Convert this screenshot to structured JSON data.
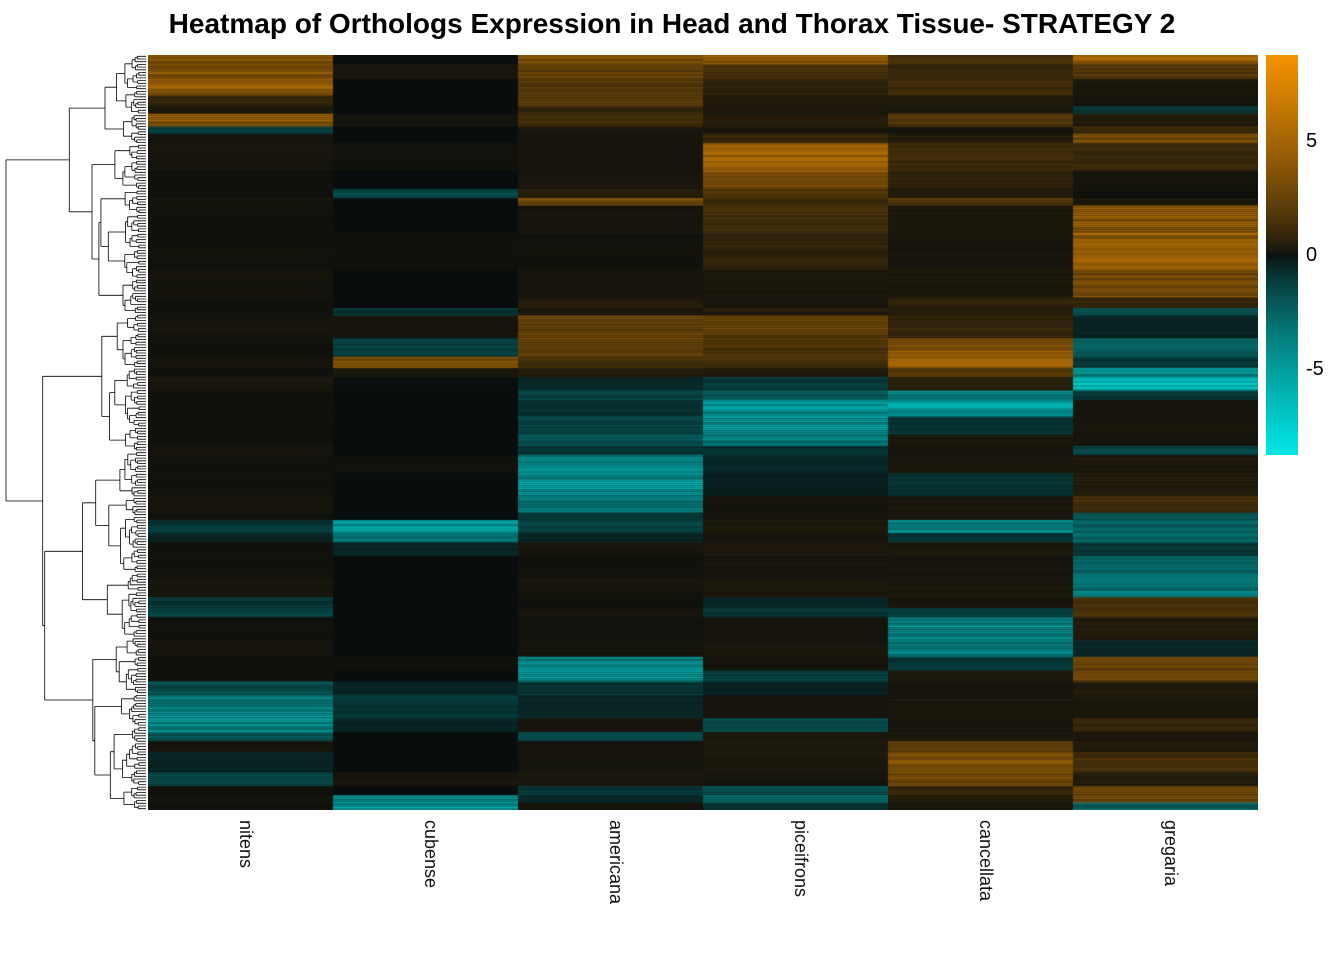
{
  "title": "Heatmap of Orthologs Expression in Head and Thorax Tissue- STRATEGY 2",
  "chart_data": {
    "type": "heatmap",
    "title": "Heatmap of Orthologs Expression in Head and Thorax Tissue- STRATEGY 2",
    "columns": [
      "nitens",
      "cubense",
      "americana",
      "piceifrons",
      "cancellata",
      "gregaria"
    ],
    "row_dendrogram": true,
    "colorbar": {
      "vmin": -8.8,
      "vmax": 8.8,
      "ticks": [
        {
          "value": 5,
          "label": "5"
        },
        {
          "value": 0,
          "label": "0"
        },
        {
          "value": -5,
          "label": "-5"
        }
      ],
      "color_negative": "#00e8e8",
      "color_zero": "#0a0e0e",
      "color_positive": "#f59300"
    },
    "bands": [
      {
        "h": 0.01,
        "v": [
          3.5,
          0,
          3,
          4,
          1.5,
          4.5
        ]
      },
      {
        "h": 0.016,
        "v": [
          4,
          0.3,
          2.5,
          1.5,
          1,
          2
        ]
      },
      {
        "h": 0.018,
        "v": [
          4.5,
          0,
          2,
          0.8,
          1.2,
          0.3
        ]
      },
      {
        "h": 0.012,
        "v": [
          1,
          0,
          2.5,
          0.5,
          0.5,
          0.2
        ]
      },
      {
        "h": 0.008,
        "v": [
          0.3,
          0,
          1,
          0.3,
          0.3,
          -1
        ]
      },
      {
        "h": 0.014,
        "v": [
          4,
          0.2,
          1.5,
          0.5,
          2,
          0.5
        ]
      },
      {
        "h": 0.008,
        "v": [
          -1.5,
          0,
          0.3,
          0.3,
          0.2,
          1.5
        ]
      },
      {
        "h": 0.01,
        "v": [
          0.2,
          0,
          0.2,
          1,
          0.5,
          3
        ]
      },
      {
        "h": 0.03,
        "v": [
          0.2,
          0.1,
          0.2,
          4.5,
          1.2,
          1
        ]
      },
      {
        "h": 0.02,
        "v": [
          0.1,
          0,
          0.3,
          4,
          0.8,
          0.2
        ]
      },
      {
        "h": 0.01,
        "v": [
          0.1,
          -1.5,
          0.5,
          2,
          0.5,
          0.1
        ]
      },
      {
        "h": 0.008,
        "v": [
          0.2,
          0,
          3,
          1,
          2,
          0.3
        ]
      },
      {
        "h": 0.03,
        "v": [
          0.1,
          0,
          0.2,
          1.5,
          0.3,
          4
        ]
      },
      {
        "h": 0.04,
        "v": [
          0.1,
          0.1,
          0.1,
          0.8,
          0.2,
          4.5
        ]
      },
      {
        "h": 0.03,
        "v": [
          0.2,
          0,
          0.2,
          0.3,
          0.3,
          3.5
        ]
      },
      {
        "h": 0.012,
        "v": [
          0.1,
          0,
          0.5,
          0.2,
          0.8,
          1
        ]
      },
      {
        "h": 0.008,
        "v": [
          0.1,
          -1,
          0.3,
          0.5,
          0.5,
          -2
        ]
      },
      {
        "h": 0.025,
        "v": [
          0.2,
          0.2,
          3,
          2.5,
          1,
          -0.5
        ]
      },
      {
        "h": 0.02,
        "v": [
          0.1,
          -1.5,
          2.5,
          2,
          4,
          -2.5
        ]
      },
      {
        "h": 0.012,
        "v": [
          0.2,
          3.5,
          1.5,
          1.5,
          4.5,
          -1
        ]
      },
      {
        "h": 0.01,
        "v": [
          0.1,
          0.3,
          0.5,
          0.5,
          2,
          -4.5
        ]
      },
      {
        "h": 0.015,
        "v": [
          0.2,
          0,
          -0.5,
          -1,
          0.5,
          -5.5
        ]
      },
      {
        "h": 0.01,
        "v": [
          0.1,
          0,
          -1.5,
          -2,
          -4,
          -1
        ]
      },
      {
        "h": 0.018,
        "v": [
          0.1,
          0,
          -0.8,
          -4.5,
          -5,
          0.2
        ]
      },
      {
        "h": 0.02,
        "v": [
          0.1,
          0,
          -1.5,
          -5,
          -1,
          0.3
        ]
      },
      {
        "h": 0.012,
        "v": [
          0.1,
          0,
          -2,
          -3.5,
          0.3,
          0.2
        ]
      },
      {
        "h": 0.01,
        "v": [
          0.2,
          0,
          -1,
          -1,
          0.2,
          -1.5
        ]
      },
      {
        "h": 0.02,
        "v": [
          0.1,
          0.1,
          -4,
          -0.5,
          0.3,
          0.3
        ]
      },
      {
        "h": 0.025,
        "v": [
          0.1,
          0,
          -4.5,
          -0.3,
          -1,
          0.5
        ]
      },
      {
        "h": 0.018,
        "v": [
          0.2,
          0,
          -3.5,
          0.2,
          0.3,
          1.5
        ]
      },
      {
        "h": 0.008,
        "v": [
          0.1,
          0,
          -1,
          0.2,
          0.3,
          -2
        ]
      },
      {
        "h": 0.014,
        "v": [
          -1,
          -4.5,
          -1.5,
          0.3,
          -4,
          -2.5
        ]
      },
      {
        "h": 0.01,
        "v": [
          -0.5,
          -3,
          -0.5,
          0.2,
          -1,
          -3
        ]
      },
      {
        "h": 0.015,
        "v": [
          0.1,
          -0.5,
          0.2,
          0.3,
          0.3,
          -1
        ]
      },
      {
        "h": 0.025,
        "v": [
          0.1,
          0,
          0.1,
          0.2,
          0.2,
          -3
        ]
      },
      {
        "h": 0.02,
        "v": [
          0.2,
          0,
          0.2,
          0.3,
          0.3,
          -3.5
        ]
      },
      {
        "h": 0.012,
        "v": [
          -1,
          0,
          0.1,
          -0.5,
          0.2,
          1.5
        ]
      },
      {
        "h": 0.01,
        "v": [
          -1.5,
          0,
          0.2,
          -1,
          -1.5,
          2
        ]
      },
      {
        "h": 0.025,
        "v": [
          0.1,
          0,
          0.1,
          0.2,
          -4.5,
          0.5
        ]
      },
      {
        "h": 0.018,
        "v": [
          0.2,
          0,
          0.2,
          0.3,
          -4,
          -0.5
        ]
      },
      {
        "h": 0.015,
        "v": [
          0.1,
          0.1,
          -4,
          0.2,
          -1,
          2.5
        ]
      },
      {
        "h": 0.012,
        "v": [
          0.1,
          0,
          -4.5,
          -1.5,
          0.3,
          3
        ]
      },
      {
        "h": 0.015,
        "v": [
          -2,
          -0.5,
          -1,
          -0.5,
          0.2,
          0.5
        ]
      },
      {
        "h": 0.025,
        "v": [
          -4,
          -1,
          -0.5,
          0.2,
          0.3,
          0.3
        ]
      },
      {
        "h": 0.015,
        "v": [
          -4.5,
          -0.5,
          0.2,
          -1.5,
          0.2,
          1
        ]
      },
      {
        "h": 0.01,
        "v": [
          -2,
          0,
          -1.5,
          0.3,
          0.3,
          0.3
        ]
      },
      {
        "h": 0.012,
        "v": [
          0.2,
          0,
          0.2,
          0.3,
          2,
          0.5
        ]
      },
      {
        "h": 0.022,
        "v": [
          -0.5,
          0,
          0.2,
          0.3,
          4,
          1.5
        ]
      },
      {
        "h": 0.015,
        "v": [
          -1.5,
          0.2,
          0.3,
          0.2,
          3.5,
          0.5
        ]
      },
      {
        "h": 0.01,
        "v": [
          0.1,
          0,
          -1,
          -2,
          1,
          2.5
        ]
      },
      {
        "h": 0.008,
        "v": [
          0.2,
          -4,
          -0.5,
          -2.5,
          0.5,
          3
        ]
      },
      {
        "h": 0.008,
        "v": [
          0.1,
          -5,
          0.2,
          -1,
          0.3,
          -3
        ]
      }
    ]
  }
}
